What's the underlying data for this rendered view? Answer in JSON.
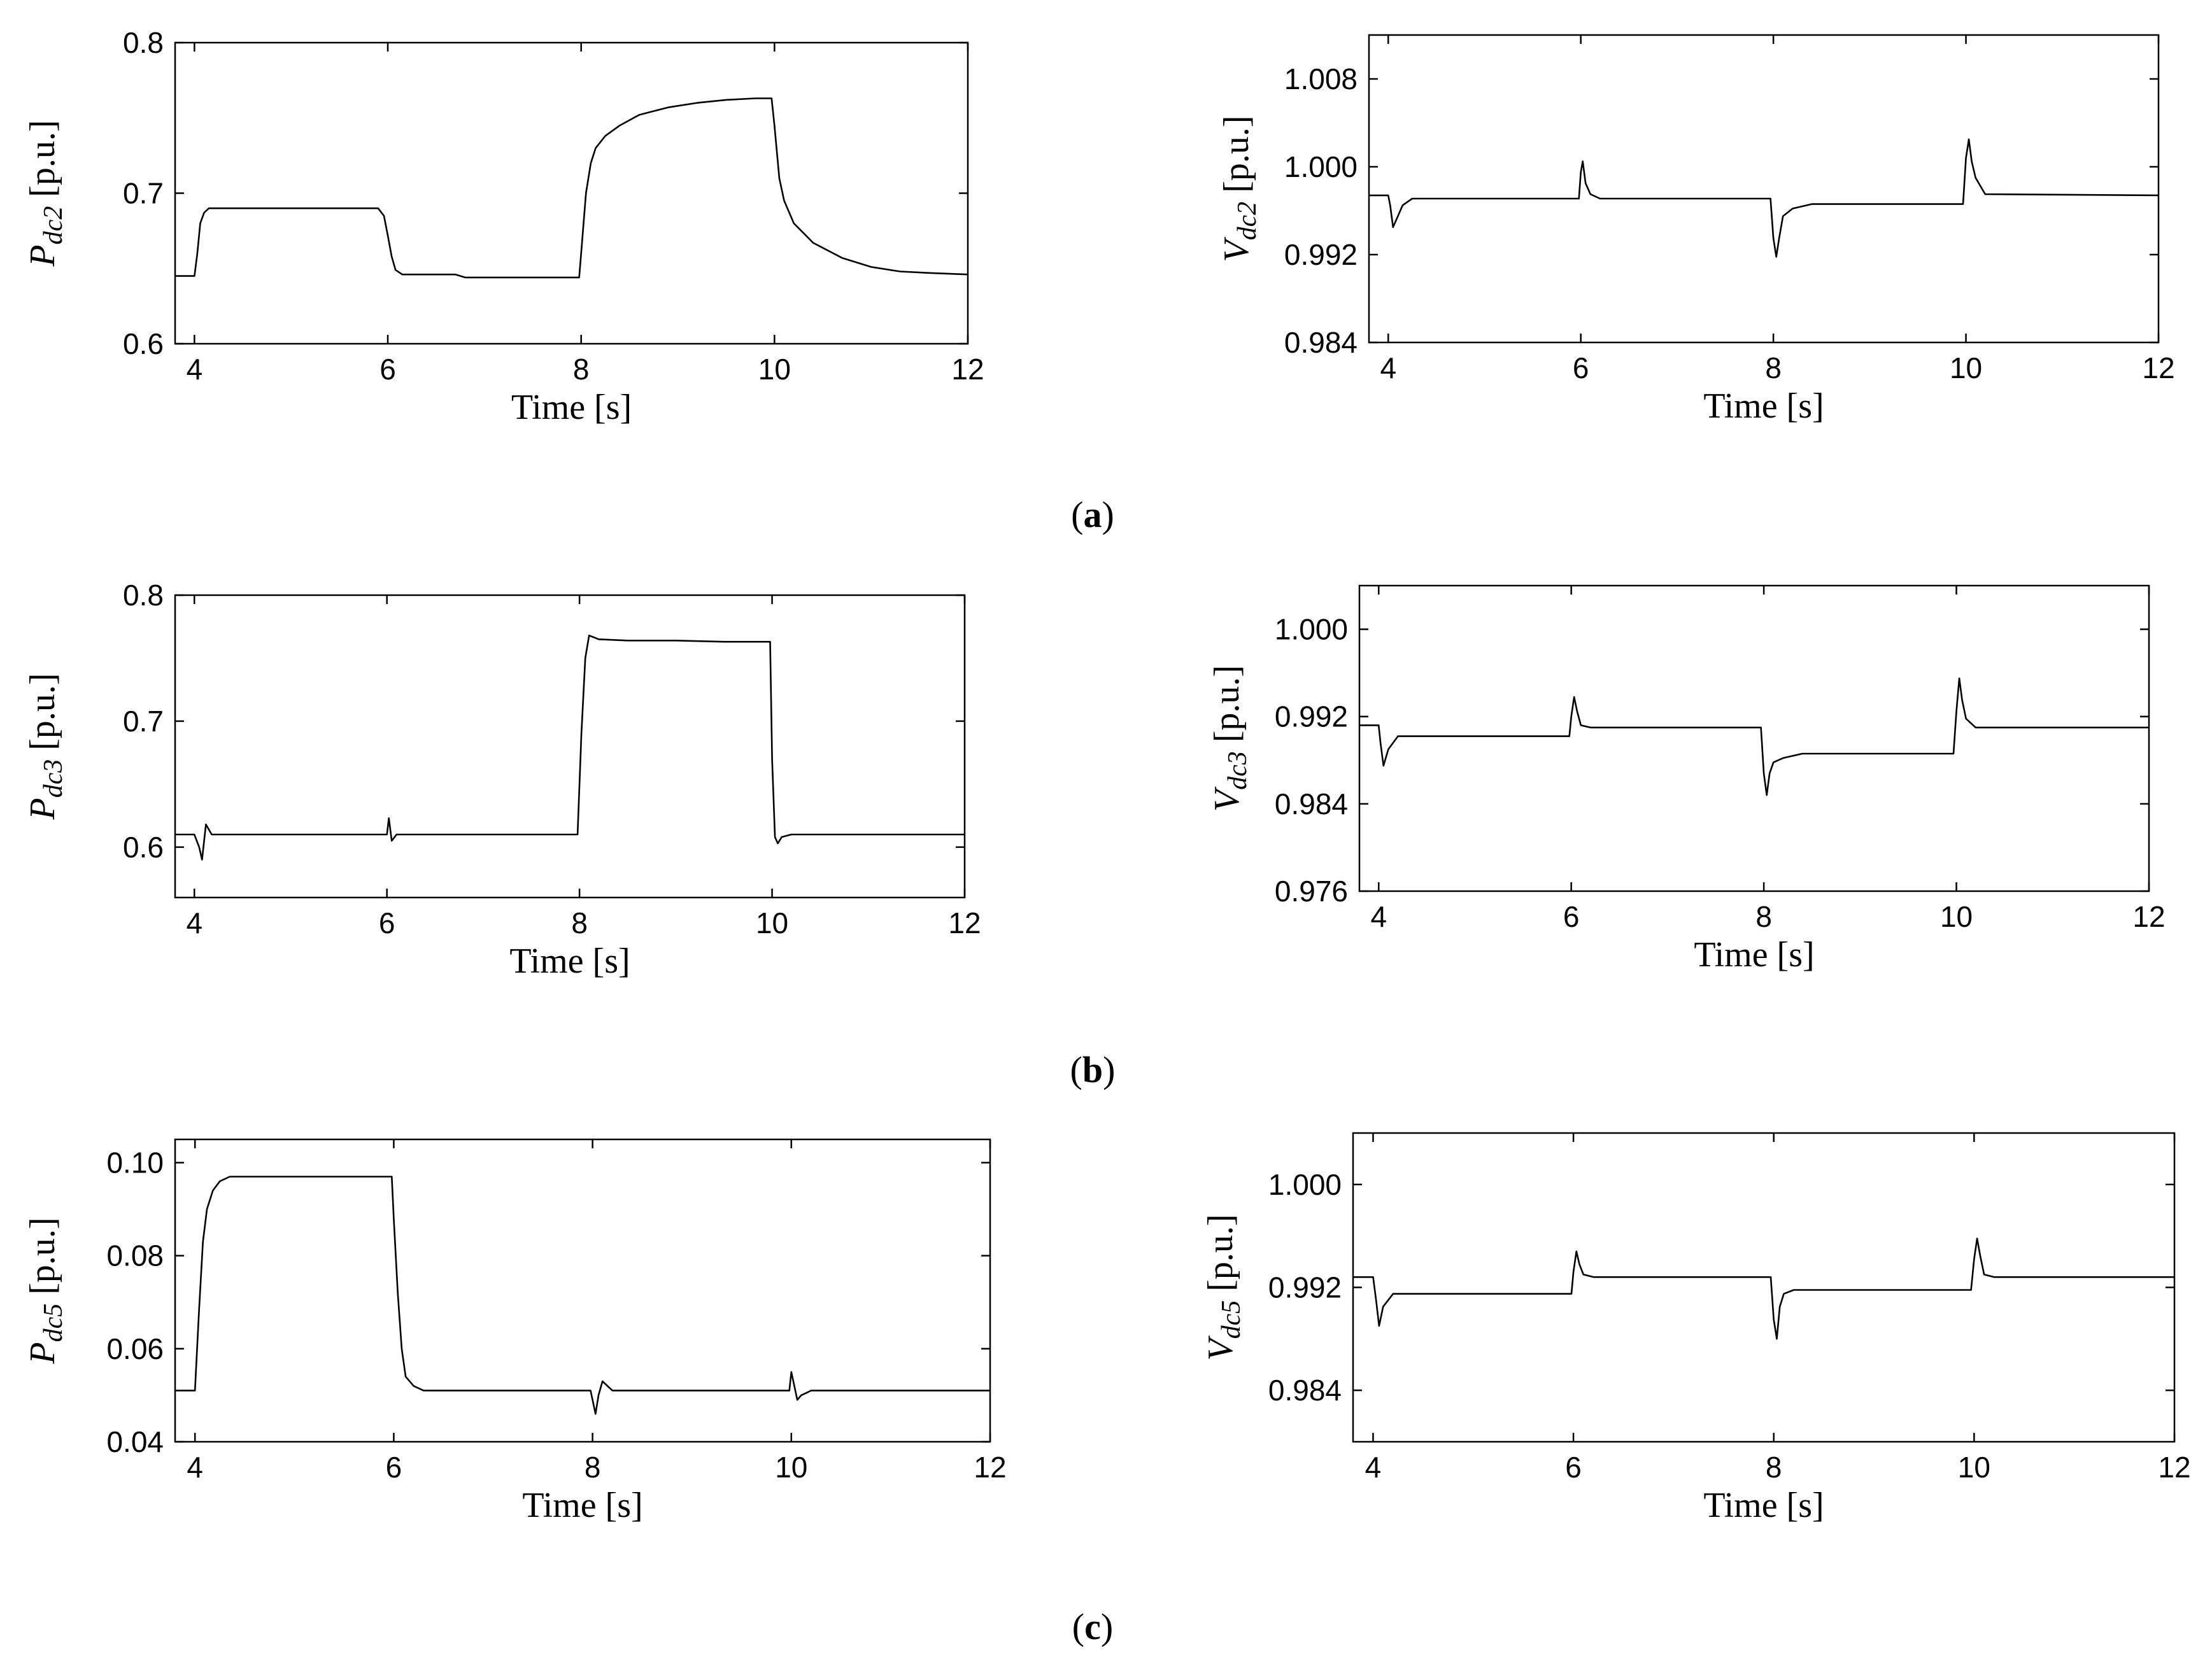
{
  "chart_data": [
    {
      "id": "a-left",
      "type": "line",
      "panel": "a",
      "ylabel_main": "P",
      "ylabel_sub": "dc2",
      "ylabel_unit": " [p.u.]",
      "xlabel": "Time [s]",
      "xlim": [
        3.8,
        12
      ],
      "ylim": [
        0.6,
        0.8
      ],
      "xticks": [
        4,
        6,
        8,
        10,
        12
      ],
      "yticks": [
        0.6,
        0.7,
        0.8
      ],
      "ytick_labels": [
        "0.6",
        "0.7",
        "0.8"
      ],
      "series": [
        {
          "name": "Pdc2",
          "x": [
            3.8,
            4.0,
            4.03,
            4.06,
            4.1,
            4.15,
            4.3,
            5.0,
            5.9,
            5.96,
            6.0,
            6.04,
            6.08,
            6.15,
            6.3,
            6.7,
            6.8,
            7.5,
            7.98,
            8.0,
            8.05,
            8.1,
            8.15,
            8.25,
            8.4,
            8.6,
            8.9,
            9.2,
            9.5,
            9.8,
            9.97,
            10.0,
            10.05,
            10.1,
            10.2,
            10.4,
            10.7,
            11.0,
            11.3,
            11.6,
            12.0
          ],
          "y": [
            0.645,
            0.645,
            0.66,
            0.68,
            0.687,
            0.69,
            0.69,
            0.69,
            0.69,
            0.685,
            0.672,
            0.658,
            0.649,
            0.646,
            0.646,
            0.646,
            0.644,
            0.644,
            0.644,
            0.66,
            0.7,
            0.72,
            0.73,
            0.738,
            0.745,
            0.752,
            0.757,
            0.76,
            0.762,
            0.763,
            0.763,
            0.745,
            0.71,
            0.695,
            0.68,
            0.667,
            0.657,
            0.651,
            0.648,
            0.647,
            0.646
          ]
        }
      ]
    },
    {
      "id": "a-right",
      "type": "line",
      "panel": "a",
      "ylabel_main": "V",
      "ylabel_sub": "dc2",
      "ylabel_unit": " [p.u.]",
      "xlabel": "Time [s]",
      "xlim": [
        3.8,
        12
      ],
      "ylim": [
        0.984,
        1.012
      ],
      "xticks": [
        4,
        6,
        8,
        10,
        12
      ],
      "yticks": [
        0.984,
        0.992,
        1.0,
        1.008
      ],
      "ytick_labels": [
        "0.984",
        "0.992",
        "1.000",
        "1.008"
      ],
      "series": [
        {
          "name": "Vdc2",
          "x": [
            3.8,
            4.0,
            4.02,
            4.05,
            4.1,
            4.15,
            4.25,
            5.98,
            6.0,
            6.02,
            6.05,
            6.1,
            6.2,
            7.97,
            8.0,
            8.03,
            8.06,
            8.1,
            8.2,
            8.4,
            9.97,
            10.0,
            10.03,
            10.06,
            10.1,
            10.2,
            12.0
          ],
          "y": [
            0.9974,
            0.9974,
            0.9965,
            0.9945,
            0.9955,
            0.9965,
            0.9971,
            0.9971,
            0.9995,
            1.0005,
            0.9985,
            0.9975,
            0.9971,
            0.9971,
            0.9935,
            0.9918,
            0.9935,
            0.9955,
            0.9962,
            0.9966,
            0.9966,
            1.0008,
            1.0025,
            1.0005,
            0.999,
            0.9975,
            0.9974
          ]
        }
      ]
    },
    {
      "id": "b-left",
      "type": "line",
      "panel": "b",
      "ylabel_main": "P",
      "ylabel_sub": "dc3",
      "ylabel_unit": " [p.u.]",
      "xlabel": "Time [s]",
      "xlim": [
        3.8,
        12
      ],
      "ylim": [
        0.56,
        0.8
      ],
      "xticks": [
        4,
        6,
        8,
        10,
        12
      ],
      "yticks": [
        0.6,
        0.7,
        0.8
      ],
      "ytick_labels": [
        "0.6",
        "0.7",
        "0.8"
      ],
      "series": [
        {
          "name": "Pdc3",
          "x": [
            3.8,
            4.0,
            4.05,
            4.08,
            4.12,
            4.18,
            6.0,
            6.02,
            6.05,
            6.1,
            7.98,
            8.02,
            8.06,
            8.1,
            8.2,
            8.5,
            9.0,
            9.5,
            9.98,
            10.0,
            10.03,
            10.06,
            10.1,
            10.2,
            12.0
          ],
          "y": [
            0.61,
            0.61,
            0.6,
            0.59,
            0.618,
            0.61,
            0.61,
            0.623,
            0.605,
            0.61,
            0.61,
            0.69,
            0.75,
            0.768,
            0.765,
            0.764,
            0.764,
            0.763,
            0.763,
            0.67,
            0.608,
            0.603,
            0.608,
            0.61,
            0.61
          ]
        }
      ]
    },
    {
      "id": "b-right",
      "type": "line",
      "panel": "b",
      "ylabel_main": "V",
      "ylabel_sub": "dc3",
      "ylabel_unit": " [p.u.]",
      "xlabel": "Time [s]",
      "xlim": [
        3.8,
        12
      ],
      "ylim": [
        0.976,
        1.004
      ],
      "xticks": [
        4,
        6,
        8,
        10,
        12
      ],
      "yticks": [
        0.976,
        0.984,
        0.992,
        1.0
      ],
      "ytick_labels": [
        "0.976",
        "0.984",
        "0.992",
        "1.000"
      ],
      "series": [
        {
          "name": "Vdc3",
          "x": [
            3.8,
            4.0,
            4.02,
            4.05,
            4.1,
            4.2,
            5.98,
            6.0,
            6.03,
            6.06,
            6.1,
            6.2,
            7.97,
            8.0,
            8.03,
            8.06,
            8.1,
            8.2,
            8.4,
            9.97,
            10.0,
            10.03,
            10.06,
            10.1,
            10.2,
            12.0
          ],
          "y": [
            0.9912,
            0.9912,
            0.9895,
            0.9875,
            0.989,
            0.9902,
            0.9902,
            0.992,
            0.9938,
            0.9925,
            0.9912,
            0.991,
            0.991,
            0.9868,
            0.9848,
            0.9868,
            0.9878,
            0.9882,
            0.9886,
            0.9886,
            0.9925,
            0.9955,
            0.9935,
            0.9918,
            0.991,
            0.991
          ]
        }
      ]
    },
    {
      "id": "c-left",
      "type": "line",
      "panel": "c",
      "ylabel_main": "P",
      "ylabel_sub": "dc5",
      "ylabel_unit": " [p.u.]",
      "xlabel": "Time [s]",
      "xlim": [
        3.8,
        12
      ],
      "ylim": [
        0.04,
        0.105
      ],
      "xticks": [
        4,
        6,
        8,
        10,
        12
      ],
      "yticks": [
        0.04,
        0.06,
        0.08,
        0.1
      ],
      "ytick_labels": [
        "0.04",
        "0.06",
        "0.08",
        "0.10"
      ],
      "series": [
        {
          "name": "Pdc5",
          "x": [
            3.8,
            4.0,
            4.04,
            4.08,
            4.12,
            4.18,
            4.25,
            4.35,
            5.98,
            6.0,
            6.04,
            6.08,
            6.12,
            6.2,
            6.3,
            7.98,
            8.0,
            8.03,
            8.06,
            8.1,
            8.2,
            8.3,
            9.98,
            10.0,
            10.03,
            10.06,
            10.1,
            10.2,
            10.3,
            12.0
          ],
          "y": [
            0.051,
            0.051,
            0.068,
            0.083,
            0.09,
            0.094,
            0.096,
            0.097,
            0.097,
            0.088,
            0.072,
            0.06,
            0.054,
            0.052,
            0.051,
            0.051,
            0.049,
            0.046,
            0.05,
            0.053,
            0.051,
            0.051,
            0.051,
            0.055,
            0.052,
            0.049,
            0.05,
            0.051,
            0.051,
            0.051
          ]
        }
      ]
    },
    {
      "id": "c-right",
      "type": "line",
      "panel": "c",
      "ylabel_main": "V",
      "ylabel_sub": "dc5",
      "ylabel_unit": " [p.u.]",
      "xlabel": "Time [s]",
      "xlim": [
        3.8,
        12
      ],
      "ylim": [
        0.98,
        1.004
      ],
      "xticks": [
        4,
        6,
        8,
        10,
        12
      ],
      "yticks": [
        0.984,
        0.992,
        1.0
      ],
      "ytick_labels": [
        "0.984",
        "0.992",
        "1.000"
      ],
      "series": [
        {
          "name": "Vdc5",
          "x": [
            3.8,
            4.0,
            4.03,
            4.06,
            4.1,
            4.2,
            5.98,
            6.0,
            6.03,
            6.06,
            6.1,
            6.2,
            7.97,
            8.0,
            8.03,
            8.06,
            8.1,
            8.2,
            9.97,
            10.0,
            10.03,
            10.06,
            10.1,
            10.2,
            12.0
          ],
          "y": [
            0.9928,
            0.9928,
            0.991,
            0.989,
            0.9905,
            0.9915,
            0.9915,
            0.9932,
            0.9948,
            0.9938,
            0.993,
            0.9928,
            0.9928,
            0.9895,
            0.988,
            0.9905,
            0.9915,
            0.9918,
            0.9918,
            0.9942,
            0.9958,
            0.9945,
            0.993,
            0.9928,
            0.9928
          ]
        }
      ]
    }
  ],
  "captions": [
    {
      "label": "a",
      "open": "(",
      "close": ")"
    },
    {
      "label": "b",
      "open": "(",
      "close": ")"
    },
    {
      "label": "c",
      "open": "(",
      "close": ")"
    }
  ]
}
